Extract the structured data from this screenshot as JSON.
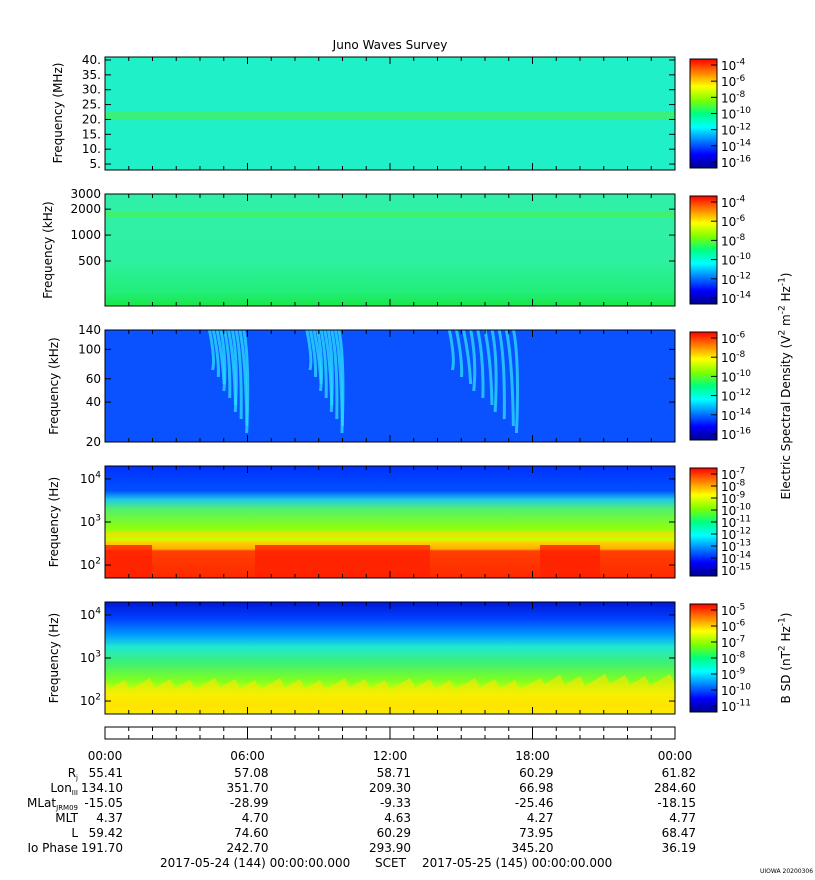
{
  "title": "Juno Waves Survey",
  "panels": [
    {
      "id": "p1",
      "ylabel": "Frequency (MHz)",
      "yticks": [
        "40.",
        "35.",
        "30.",
        "25.",
        "20.",
        "15.",
        "10.",
        "5."
      ],
      "cbar_ticks": [
        "10^-4",
        "10^-6",
        "10^-8",
        "10^-10",
        "10^-12",
        "10^-14",
        "10^-16"
      ],
      "cbar_label": ""
    },
    {
      "id": "p2",
      "ylabel": "Frequency (kHz)",
      "yticks": [
        "3000",
        "2000",
        "1000",
        "500"
      ],
      "cbar_ticks": [
        "10^-4",
        "10^-6",
        "10^-8",
        "10^-10",
        "10^-12",
        "10^-14"
      ],
      "cbar_label": ""
    },
    {
      "id": "p3",
      "ylabel": "Frequency (kHz)",
      "yticks": [
        "140",
        "100",
        "60",
        "40",
        "20"
      ],
      "cbar_ticks": [
        "10^-6",
        "10^-8",
        "10^-10",
        "10^-12",
        "10^-14",
        "10^-16"
      ],
      "cbar_label": "Electric Spectral Density (V^2 m^-2 Hz^-1)"
    },
    {
      "id": "p4",
      "ylabel": "Frequency (Hz)",
      "yticks": [
        "10^4",
        "10^3",
        "10^2"
      ],
      "cbar_ticks": [
        "10^-7",
        "10^-8",
        "10^-9",
        "10^-10",
        "10^-11",
        "10^-12",
        "10^-13",
        "10^-14",
        "10^-15"
      ],
      "cbar_label": ""
    },
    {
      "id": "p5",
      "ylabel": "Frequency (Hz)",
      "yticks": [
        "10^4",
        "10^3",
        "10^2"
      ],
      "cbar_ticks": [
        "10^-5",
        "10^-6",
        "10^-7",
        "10^-8",
        "10^-9",
        "10^-10",
        "10^-11"
      ],
      "cbar_label": "B SD (nT^2 Hz^-1)"
    }
  ],
  "time_labels": [
    "00:00",
    "06:00",
    "12:00",
    "18:00",
    "00:00"
  ],
  "ephemeris": [
    {
      "label": "Rj",
      "values": [
        "55.41",
        "57.08",
        "58.71",
        "60.29",
        "61.82"
      ]
    },
    {
      "label": "LonIII",
      "values": [
        "134.10",
        "351.70",
        "209.30",
        "66.98",
        "284.60"
      ]
    },
    {
      "label": "MLatJRM09",
      "values": [
        "-15.05",
        "-28.99",
        "-9.33",
        "-25.46",
        "-18.15"
      ]
    },
    {
      "label": "MLT",
      "values": [
        "4.37",
        "4.70",
        "4.63",
        "4.27",
        "4.77"
      ]
    },
    {
      "label": "L",
      "values": [
        "59.42",
        "74.60",
        "60.29",
        "73.95",
        "68.47"
      ]
    },
    {
      "label": "Io Phase",
      "values": [
        "191.70",
        "242.70",
        "293.90",
        "345.20",
        "36.19"
      ]
    }
  ],
  "footer": {
    "start": "2017-05-24 (144) 00:00:00.000",
    "mid": "SCET",
    "end": "2017-05-25 (145) 00:00:00.000"
  },
  "stamp": "UIOWA 20200306",
  "chart_data": [
    {
      "type": "heatmap",
      "title": "Juno Waves Survey",
      "xlabel": "",
      "ylabel": "Frequency (MHz)",
      "x_range": [
        "2017-05-24 00:00",
        "2017-05-25 00:00"
      ],
      "ylim": [
        3,
        41
      ],
      "colorbar_range_log10": [
        -16.5,
        -3.8
      ],
      "bands": [
        {
          "freq": 21,
          "log10_level": -12.3
        }
      ],
      "background_log10_level": -13.5
    },
    {
      "type": "heatmap",
      "xlabel": "",
      "ylabel": "Frequency (kHz)",
      "x_range": [
        "2017-05-24 00:00",
        "2017-05-25 00:00"
      ],
      "ylim": [
        150,
        3000
      ],
      "colorbar_range_log10": [
        -15,
        -3.8
      ],
      "bands": [
        {
          "freq": 1700,
          "log10_level": -11
        }
      ],
      "background_log10_level": -11.4
    },
    {
      "type": "heatmap",
      "xlabel": "",
      "ylabel": "Frequency (kHz)",
      "x_range": [
        "2017-05-24 00:00",
        "2017-05-25 00:00"
      ],
      "ylim": [
        20,
        140
      ],
      "colorbar_range_log10": [
        -16,
        -6
      ],
      "background_log10_level": -14.8,
      "emissions_hours": [
        [
          4.4,
          6.0
        ],
        [
          8.5,
          10.0
        ],
        [
          14.5,
          17.5
        ]
      ]
    },
    {
      "type": "heatmap",
      "xlabel": "",
      "ylabel": "Frequency (Hz)",
      "x_range": [
        "2017-05-24 00:00",
        "2017-05-25 00:00"
      ],
      "ylim": [
        50,
        20000
      ],
      "colorbar_range_log10": [
        -15,
        -7
      ],
      "scale": "log"
    },
    {
      "type": "heatmap",
      "xlabel": "",
      "ylabel": "Frequency (Hz)",
      "x_range": [
        "2017-05-24 00:00",
        "2017-05-25 00:00"
      ],
      "ylim": [
        50,
        20000
      ],
      "colorbar_range_log10": [
        -11,
        -4.8
      ],
      "scale": "log"
    }
  ]
}
